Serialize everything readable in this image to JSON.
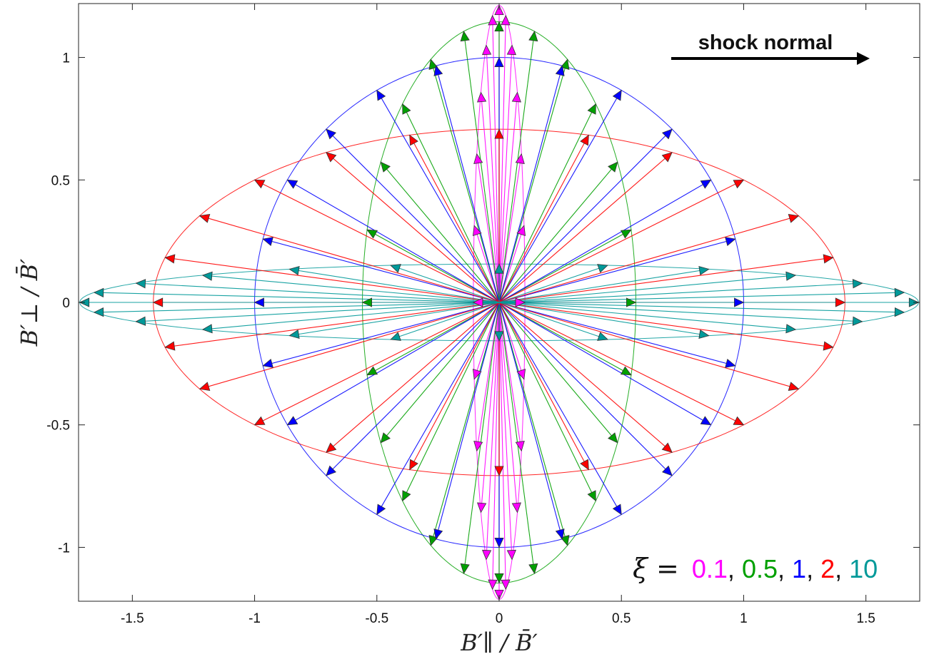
{
  "chart_data": {
    "type": "line",
    "title": "",
    "xlabel": "B′∥ / B̄′",
    "ylabel": "B′⊥ / B̄′",
    "xlim": [
      -1.72,
      1.72
    ],
    "ylim": [
      -1.22,
      1.22
    ],
    "x_ticks": [
      -1.5,
      -1,
      -0.5,
      0,
      0.5,
      1,
      1.5
    ],
    "x_tick_labels": [
      "-1.5",
      "-1",
      "-0.5",
      "0",
      "0.5",
      "1",
      "1.5"
    ],
    "y_ticks": [
      -1,
      -0.5,
      0,
      0.5,
      1
    ],
    "y_tick_labels": [
      "-1",
      "-0.5",
      "0",
      "0.5",
      "1"
    ],
    "grid": false,
    "annotation": {
      "text": "shock normal",
      "arrow_direction": "right"
    },
    "legend_prefix": "ξ =",
    "separator": ",",
    "series": [
      {
        "name": "0.1",
        "color": "#ff00ff",
        "semi_axis_parallel": 0.1054,
        "semi_axis_perp": 1.2124
      },
      {
        "name": "0.5",
        "color": "#00a000",
        "semi_axis_parallel": 0.559,
        "semi_axis_perp": 1.1456
      },
      {
        "name": "1",
        "color": "#0000ff",
        "semi_axis_parallel": 1.0,
        "semi_axis_perp": 1.0
      },
      {
        "name": "2",
        "color": "#ff0000",
        "semi_axis_parallel": 1.4142,
        "semi_axis_perp": 0.7071
      },
      {
        "name": "10",
        "color": "#009999",
        "semi_axis_parallel": 1.715,
        "semi_axis_perp": 0.1567
      }
    ],
    "vector_angles_deg": [
      0,
      15,
      30,
      45,
      60,
      75,
      90,
      105,
      120,
      135,
      150,
      165,
      180,
      195,
      210,
      225,
      240,
      255,
      270,
      285,
      300,
      315,
      330,
      345
    ]
  }
}
